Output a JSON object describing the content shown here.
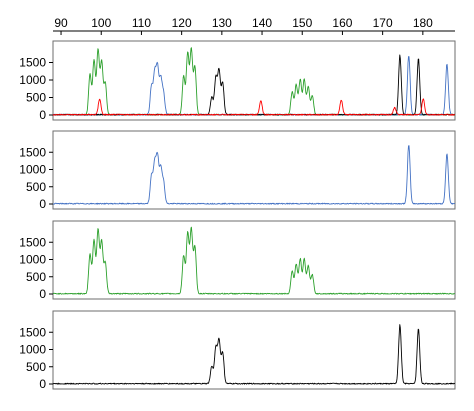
{
  "chart_data": {
    "type": "line",
    "x_axis": {
      "ticks": [
        90,
        100,
        110,
        120,
        130,
        140,
        150,
        160,
        170,
        180
      ],
      "range": [
        88,
        188
      ]
    },
    "panels": [
      {
        "name": "overlay",
        "y_ticks": [
          0,
          500,
          1000,
          1500
        ],
        "ylim": [
          0,
          2000
        ],
        "series": [
          {
            "color": "#2ca02c",
            "peaks": [
              [
                97.2,
                1150
              ],
              [
                98.2,
                1550
              ],
              [
                99.2,
                1850
              ],
              [
                100.1,
                1500
              ],
              [
                101.0,
                900
              ],
              [
                120.5,
                1100
              ],
              [
                121.5,
                1750
              ],
              [
                122.4,
                1850
              ],
              [
                123.3,
                1350
              ],
              [
                147.5,
                650
              ],
              [
                148.5,
                850
              ],
              [
                149.5,
                1000
              ],
              [
                150.5,
                1000
              ],
              [
                151.5,
                800
              ],
              [
                152.5,
                550
              ]
            ]
          },
          {
            "color": "#4472c4",
            "peaks": [
              [
                112.5,
                800
              ],
              [
                113.3,
                1150
              ],
              [
                114.0,
                1300
              ],
              [
                114.8,
                1000
              ],
              [
                115.5,
                600
              ],
              [
                176.5,
                1700
              ],
              [
                186.0,
                1450
              ]
            ]
          },
          {
            "color": "#000000",
            "peaks": [
              [
                127.5,
                500
              ],
              [
                128.5,
                1050
              ],
              [
                129.3,
                1250
              ],
              [
                130.2,
                900
              ],
              [
                174.3,
                1700
              ],
              [
                178.9,
                1600
              ]
            ]
          },
          {
            "color": "#ff0000",
            "peaks": [
              [
                99.6,
                450
              ],
              [
                139.7,
                400
              ],
              [
                159.7,
                420
              ],
              [
                173.0,
                200
              ],
              [
                180.1,
                450
              ]
            ]
          }
        ]
      },
      {
        "name": "blue",
        "y_ticks": [
          0,
          500,
          1000,
          1500
        ],
        "ylim": [
          0,
          2000
        ],
        "series": [
          {
            "color": "#4472c4",
            "peaks": [
              [
                112.5,
                800
              ],
              [
                113.3,
                1150
              ],
              [
                114.0,
                1300
              ],
              [
                114.8,
                1000
              ],
              [
                115.5,
                600
              ],
              [
                176.5,
                1700
              ],
              [
                186.0,
                1450
              ]
            ]
          }
        ]
      },
      {
        "name": "green",
        "y_ticks": [
          0,
          500,
          1000,
          1500
        ],
        "ylim": [
          0,
          2000
        ],
        "series": [
          {
            "color": "#2ca02c",
            "peaks": [
              [
                97.2,
                1150
              ],
              [
                98.2,
                1550
              ],
              [
                99.2,
                1850
              ],
              [
                100.1,
                1500
              ],
              [
                101.0,
                900
              ],
              [
                120.5,
                1100
              ],
              [
                121.5,
                1750
              ],
              [
                122.4,
                1850
              ],
              [
                123.3,
                1350
              ],
              [
                147.5,
                650
              ],
              [
                148.5,
                850
              ],
              [
                149.5,
                1000
              ],
              [
                150.5,
                1000
              ],
              [
                151.5,
                800
              ],
              [
                152.5,
                550
              ]
            ]
          }
        ]
      },
      {
        "name": "black",
        "y_ticks": [
          0,
          500,
          1000,
          1500
        ],
        "ylim": [
          0,
          2000
        ],
        "series": [
          {
            "color": "#000000",
            "peaks": [
              [
                127.5,
                500
              ],
              [
                128.5,
                1050
              ],
              [
                129.3,
                1250
              ],
              [
                130.2,
                900
              ],
              [
                174.3,
                1700
              ],
              [
                178.9,
                1600
              ]
            ]
          }
        ]
      }
    ],
    "grid": false
  }
}
